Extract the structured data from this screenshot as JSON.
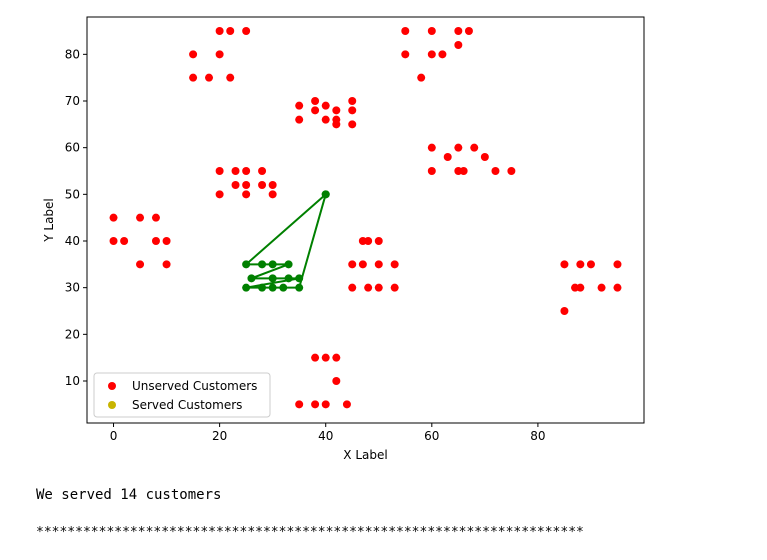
{
  "chart_data": {
    "type": "scatter",
    "xlabel": "X Label",
    "ylabel": "Y Label",
    "xlim": [
      -5,
      100
    ],
    "ylim": [
      1,
      88
    ],
    "xticks": [
      0,
      20,
      40,
      60,
      80
    ],
    "yticks": [
      10,
      20,
      30,
      40,
      50,
      60,
      70,
      80
    ],
    "grid": false,
    "legend_position": "lower-left",
    "series": [
      {
        "name": "Unserved Customers",
        "color": "#ff0000",
        "points": [
          [
            20,
            85
          ],
          [
            22,
            85
          ],
          [
            25,
            85
          ],
          [
            15,
            80
          ],
          [
            20,
            80
          ],
          [
            15,
            75
          ],
          [
            18,
            75
          ],
          [
            22,
            75
          ],
          [
            55,
            85
          ],
          [
            60,
            85
          ],
          [
            65,
            85
          ],
          [
            67,
            85
          ],
          [
            65,
            82
          ],
          [
            55,
            80
          ],
          [
            60,
            80
          ],
          [
            62,
            80
          ],
          [
            58,
            75
          ],
          [
            35,
            69
          ],
          [
            38,
            70
          ],
          [
            40,
            69
          ],
          [
            42,
            68
          ],
          [
            45,
            70
          ],
          [
            38,
            68
          ],
          [
            45,
            68
          ],
          [
            35,
            66
          ],
          [
            40,
            66
          ],
          [
            42,
            66
          ],
          [
            42,
            65
          ],
          [
            45,
            65
          ],
          [
            60,
            60
          ],
          [
            65,
            60
          ],
          [
            68,
            60
          ],
          [
            63,
            58
          ],
          [
            70,
            58
          ],
          [
            60,
            55
          ],
          [
            65,
            55
          ],
          [
            66,
            55
          ],
          [
            72,
            55
          ],
          [
            75,
            55
          ],
          [
            20,
            55
          ],
          [
            23,
            55
          ],
          [
            25,
            55
          ],
          [
            28,
            55
          ],
          [
            23,
            52
          ],
          [
            25,
            52
          ],
          [
            28,
            52
          ],
          [
            30,
            52
          ],
          [
            20,
            50
          ],
          [
            25,
            50
          ],
          [
            30,
            50
          ],
          [
            0,
            45
          ],
          [
            5,
            45
          ],
          [
            8,
            45
          ],
          [
            0,
            40
          ],
          [
            2,
            40
          ],
          [
            8,
            40
          ],
          [
            10,
            40
          ],
          [
            5,
            35
          ],
          [
            10,
            35
          ],
          [
            47,
            40
          ],
          [
            48,
            40
          ],
          [
            50,
            40
          ],
          [
            45,
            35
          ],
          [
            47,
            35
          ],
          [
            50,
            35
          ],
          [
            53,
            35
          ],
          [
            45,
            30
          ],
          [
            48,
            30
          ],
          [
            50,
            30
          ],
          [
            53,
            30
          ],
          [
            85,
            35
          ],
          [
            88,
            35
          ],
          [
            90,
            35
          ],
          [
            95,
            35
          ],
          [
            87,
            30
          ],
          [
            88,
            30
          ],
          [
            92,
            30
          ],
          [
            95,
            30
          ],
          [
            85,
            25
          ],
          [
            38,
            15
          ],
          [
            40,
            15
          ],
          [
            42,
            15
          ],
          [
            42,
            10
          ],
          [
            35,
            5
          ],
          [
            38,
            5
          ],
          [
            40,
            5
          ],
          [
            44,
            5
          ]
        ]
      },
      {
        "name": "Served Customers",
        "color": "#c8b400",
        "points": []
      }
    ],
    "route": {
      "color": "#008000",
      "points": [
        [
          40,
          50
        ],
        [
          25,
          35
        ],
        [
          28,
          35
        ],
        [
          30,
          35
        ],
        [
          33,
          35
        ],
        [
          26,
          32
        ],
        [
          30,
          32
        ],
        [
          33,
          32
        ],
        [
          35,
          32
        ],
        [
          25,
          30
        ],
        [
          28,
          30
        ],
        [
          30,
          30
        ],
        [
          32,
          30
        ],
        [
          35,
          30
        ],
        [
          40,
          50
        ]
      ]
    }
  },
  "output": {
    "message": "We served 14 customers",
    "separator": "**********************************************************************"
  }
}
